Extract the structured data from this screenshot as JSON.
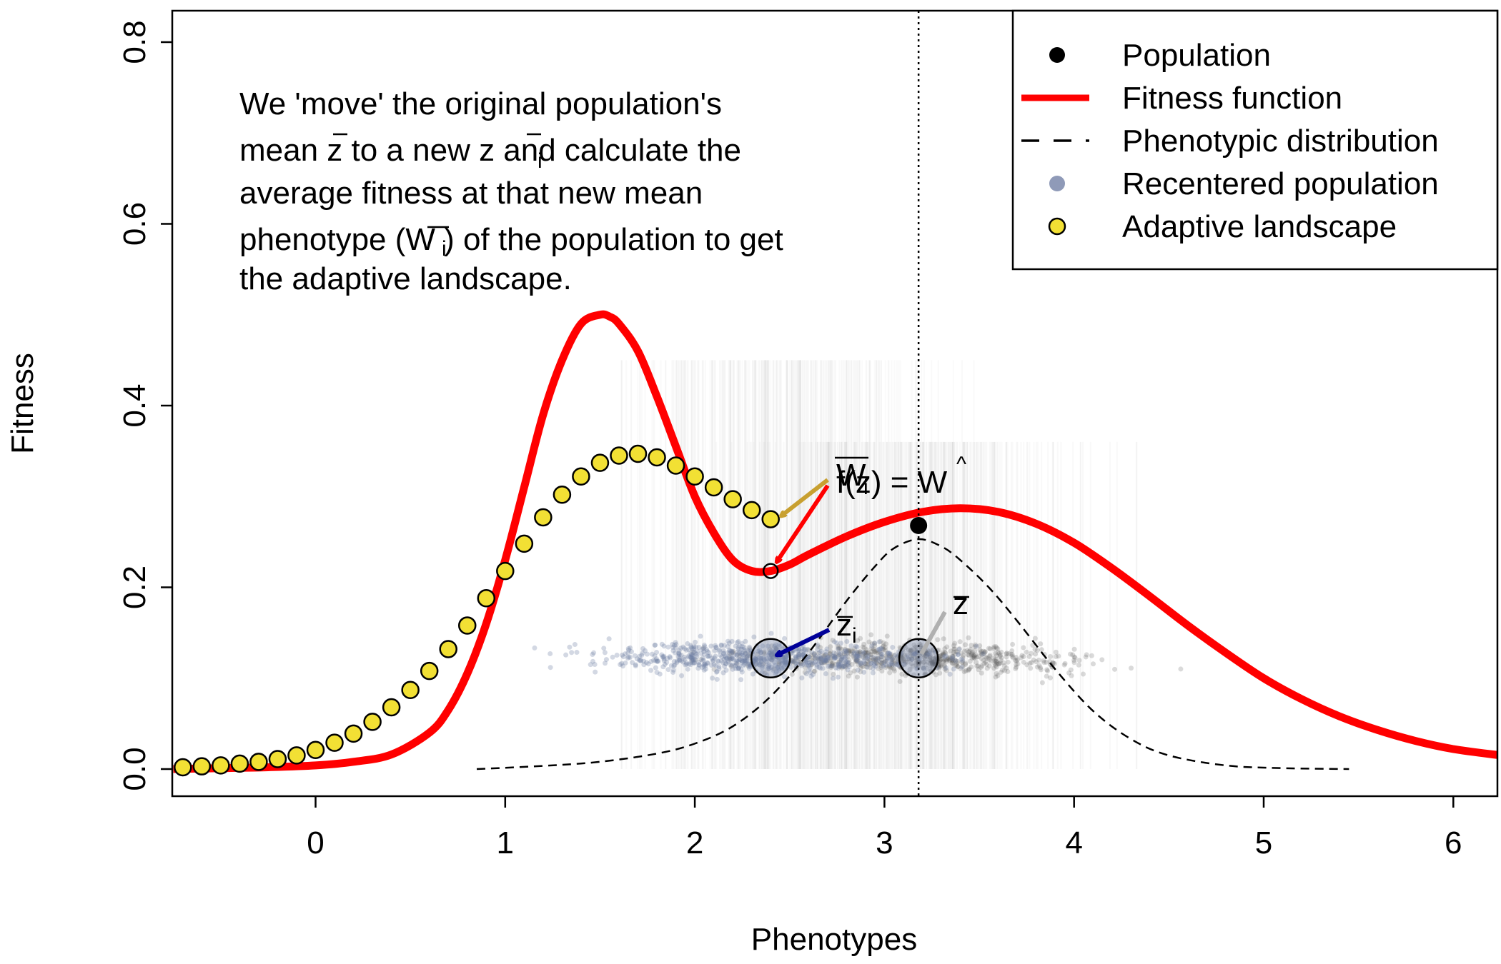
{
  "chart_data": {
    "type": "line",
    "xlabel": "Phenotypes",
    "ylabel": "Fitness",
    "xlim": [
      -0.75,
      6.25
    ],
    "ylim": [
      -0.03,
      0.83
    ],
    "x_ticks": [
      "0",
      "1",
      "2",
      "3",
      "4",
      "5",
      "6"
    ],
    "x_tick_values": [
      0,
      1,
      2,
      3,
      4,
      5,
      6
    ],
    "y_ticks": [
      "0.0",
      "0.2",
      "0.4",
      "0.6",
      "0.8"
    ],
    "y_tick_values": [
      0.0,
      0.2,
      0.4,
      0.6,
      0.8
    ],
    "legend": {
      "placement": "top-right",
      "entries": [
        {
          "label": "Population",
          "symbol": "dot",
          "color": "#000000"
        },
        {
          "label": "Fitness function",
          "symbol": "line",
          "color": "#ff0000"
        },
        {
          "label": "Phenotypic distribution",
          "symbol": "dashed-line",
          "color": "#000000"
        },
        {
          "label": "Recentered population",
          "symbol": "dot",
          "color": "#8f9ab8"
        },
        {
          "label": "Adaptive landscape",
          "symbol": "circle",
          "color": "#f2e034"
        }
      ]
    },
    "annotation_lines": [
      "We 'move' the original population's",
      "mean z to a new z and calculate the",
      "average fitness at that new mean",
      "phenotype (W ) of the population to get",
      "the adaptive landscape."
    ],
    "annotation_subscript": "i",
    "labels": {
      "wbar_label": "W",
      "wbar_sub": "i",
      "fz_label": "f(z) = W",
      "z_label": "z",
      "zi_label": "z",
      "zi_sub": "i"
    },
    "series": [
      {
        "name": "Fitness function",
        "color": "#ff0000",
        "x": [
          -0.75,
          -0.5,
          -0.25,
          0.0,
          0.2,
          0.4,
          0.6,
          0.7,
          0.8,
          0.9,
          1.0,
          1.1,
          1.2,
          1.3,
          1.4,
          1.5,
          1.55,
          1.6,
          1.7,
          1.8,
          1.9,
          2.0,
          2.1,
          2.2,
          2.3,
          2.4,
          2.5,
          2.6,
          2.8,
          3.0,
          3.2,
          3.4,
          3.6,
          3.8,
          4.0,
          4.2,
          4.4,
          4.6,
          4.8,
          5.0,
          5.2,
          5.4,
          5.6,
          5.8,
          6.0,
          6.25
        ],
        "y": [
          0.0,
          0.001,
          0.002,
          0.004,
          0.008,
          0.016,
          0.04,
          0.065,
          0.105,
          0.16,
          0.23,
          0.31,
          0.39,
          0.45,
          0.49,
          0.5,
          0.498,
          0.49,
          0.46,
          0.41,
          0.355,
          0.3,
          0.26,
          0.23,
          0.218,
          0.218,
          0.225,
          0.236,
          0.256,
          0.272,
          0.283,
          0.287,
          0.283,
          0.27,
          0.249,
          0.221,
          0.19,
          0.158,
          0.128,
          0.1,
          0.077,
          0.058,
          0.043,
          0.031,
          0.022,
          0.015
        ]
      },
      {
        "name": "Adaptive landscape",
        "color": "#f2e034",
        "x": [
          -0.7,
          -0.6,
          -0.5,
          -0.4,
          -0.3,
          -0.2,
          -0.1,
          0.0,
          0.1,
          0.2,
          0.3,
          0.4,
          0.5,
          0.6,
          0.7,
          0.8,
          0.9,
          1.0,
          1.1,
          1.2,
          1.3,
          1.4,
          1.5,
          1.6,
          1.7,
          1.8,
          1.9,
          2.0,
          2.1,
          2.2,
          2.3,
          2.4
        ],
        "y": [
          0.002,
          0.003,
          0.004,
          0.006,
          0.008,
          0.011,
          0.015,
          0.021,
          0.029,
          0.039,
          0.052,
          0.068,
          0.087,
          0.108,
          0.132,
          0.158,
          0.188,
          0.218,
          0.248,
          0.277,
          0.302,
          0.322,
          0.337,
          0.345,
          0.347,
          0.343,
          0.334,
          0.322,
          0.31,
          0.297,
          0.285,
          0.275
        ]
      },
      {
        "name": "Phenotypic distribution",
        "color": "#000000",
        "x": [
          0.85,
          1.2,
          1.5,
          1.8,
          2.0,
          2.2,
          2.4,
          2.6,
          2.8,
          2.95,
          3.05,
          3.18,
          3.3,
          3.4,
          3.55,
          3.7,
          3.9,
          4.1,
          4.3,
          4.5,
          4.8,
          5.1,
          5.45
        ],
        "y": [
          0.0,
          0.0035,
          0.008,
          0.017,
          0.028,
          0.047,
          0.08,
          0.128,
          0.185,
          0.223,
          0.243,
          0.253,
          0.245,
          0.23,
          0.2,
          0.163,
          0.11,
          0.064,
          0.033,
          0.015,
          0.004,
          0.001,
          0.0
        ]
      }
    ],
    "points": {
      "population_mean": {
        "x": 3.18,
        "y": 0.268
      },
      "landscape_at_zi": {
        "x": 2.4,
        "y": 0.275
      },
      "fitness_at_zi": {
        "x": 2.4,
        "y": 0.218
      },
      "z_mean": {
        "x": 3.18,
        "y": 0.122
      },
      "zi_mean": {
        "x": 2.4,
        "y": 0.122
      }
    },
    "vline_x": 3.18,
    "population_cloud": {
      "original_center": 3.18,
      "recentered_center": 2.4,
      "spread": 0.62,
      "y": 0.122,
      "y_jitter": 0.012
    },
    "colors": {
      "fitness": "#ff0000",
      "landscape_fill": "#f2e034",
      "recentered": "#6d7da3",
      "original": "#555555",
      "arrow_gold": "#c8a030",
      "arrow_red": "#ff0000",
      "arrow_blue": "#000099",
      "arrow_gray": "#b0b0b0"
    }
  }
}
